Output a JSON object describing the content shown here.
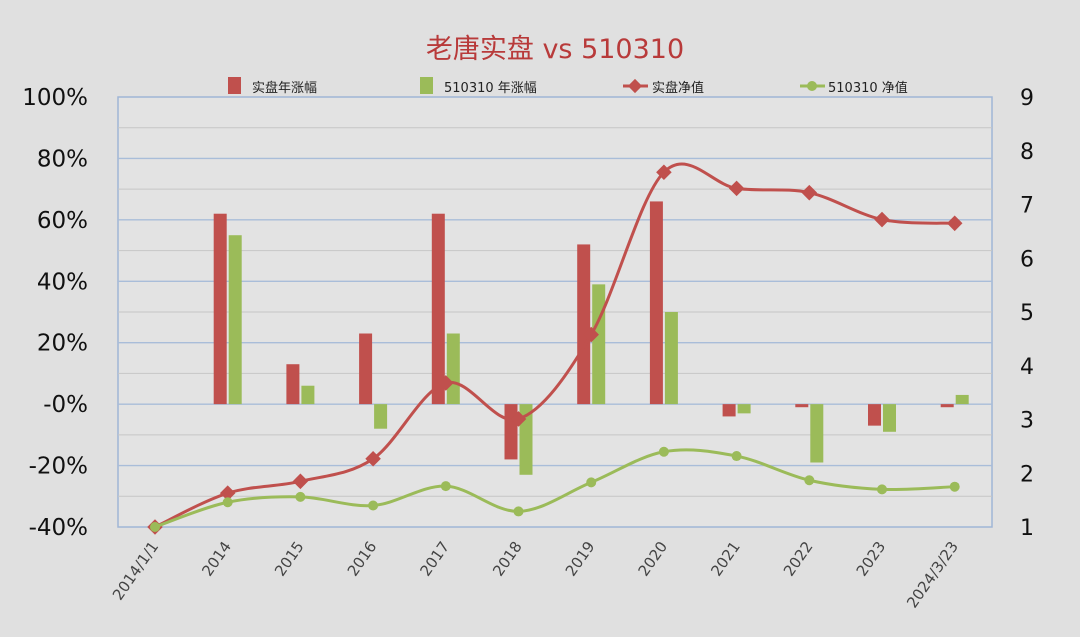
{
  "chart_data": {
    "type": "bar+line",
    "title": "老唐实盘 vs 510310",
    "categories": [
      "2014/1/1",
      "2014",
      "2015",
      "2016",
      "2017",
      "2018",
      "2019",
      "2020",
      "2021",
      "2022",
      "2023",
      "2024/3/23"
    ],
    "left_axis": {
      "ylim": [
        -40,
        100
      ],
      "ticks": [
        100,
        80,
        60,
        40,
        20,
        0,
        -20,
        -40
      ],
      "tick_labels": [
        "100%",
        "80%",
        "60%",
        "40%",
        "20%",
        "-0%",
        "-20%",
        "-40%"
      ]
    },
    "right_axis": {
      "ylim": [
        1,
        9
      ],
      "ticks": [
        9,
        8,
        7,
        6,
        5,
        4,
        3,
        2,
        1
      ],
      "tick_labels": [
        "9",
        "8",
        "7",
        "6",
        "5",
        "4",
        "3",
        "2",
        "1"
      ]
    },
    "grid": true,
    "legend_position": "top",
    "series": [
      {
        "name": "实盘年涨幅",
        "kind": "bar",
        "axis": "left",
        "color": "#c0504d",
        "values": [
          null,
          62,
          13,
          23,
          62,
          -18,
          52,
          66,
          -4,
          -1,
          -7,
          -1
        ]
      },
      {
        "name": "510310 年涨幅",
        "kind": "bar",
        "axis": "left",
        "color": "#9bbb59",
        "values": [
          null,
          55,
          6,
          -8,
          23,
          -23,
          39,
          30,
          -3,
          -19,
          -9,
          3
        ]
      },
      {
        "name": "实盘净值",
        "kind": "line",
        "marker": "diamond",
        "axis": "right",
        "color": "#c0504d",
        "values": [
          1.0,
          1.63,
          1.85,
          2.27,
          3.68,
          3.01,
          4.58,
          7.6,
          7.3,
          7.22,
          6.72,
          6.65
        ]
      },
      {
        "name": "510310 净值",
        "kind": "line",
        "marker": "circle",
        "axis": "right",
        "color": "#9bbb59",
        "values": [
          1.0,
          1.46,
          1.56,
          1.4,
          1.76,
          1.29,
          1.83,
          2.4,
          2.32,
          1.87,
          1.7,
          1.75
        ]
      }
    ]
  }
}
